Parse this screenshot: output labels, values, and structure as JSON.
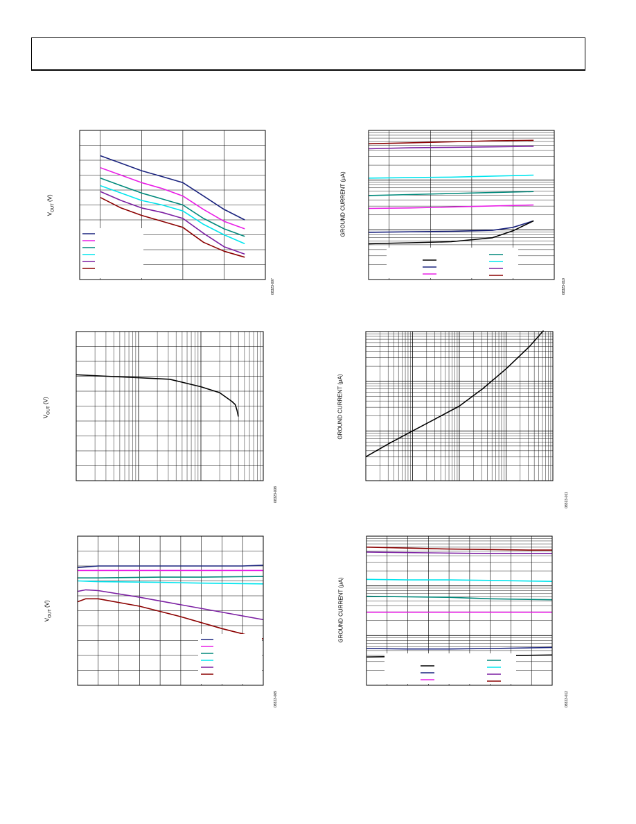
{
  "page": {
    "ylabels": {
      "vout": "V",
      "vout_sub": "OUT",
      "vout_unit": " (V)",
      "ground": "GROUND CURRENT (µA)"
    },
    "figure_codes": [
      "08323-007",
      "08323-010",
      "08323-008",
      "08323-011",
      "08323-009",
      "08323-012"
    ]
  },
  "chart_data": [
    {
      "id": "c1",
      "type": "line",
      "xlim": [
        0,
        45
      ],
      "ylim": [
        0,
        10
      ],
      "xgrid": [
        0,
        5,
        15,
        25,
        35,
        45
      ],
      "ygrid": [
        0,
        1,
        2,
        3,
        4,
        5,
        6,
        7,
        8,
        9,
        10
      ],
      "legend": "bottom-left",
      "legend_style": "box-lines",
      "series": [
        {
          "color": "#1a237e",
          "x": [
            5,
            10,
            15,
            20,
            25,
            30,
            35,
            40
          ],
          "y": [
            8.3,
            7.8,
            7.3,
            6.9,
            6.5,
            5.6,
            4.7,
            4.0
          ]
        },
        {
          "color": "#e91ee6",
          "x": [
            5,
            10,
            15,
            20,
            25,
            30,
            35,
            40
          ],
          "y": [
            7.5,
            7.0,
            6.5,
            6.1,
            5.6,
            4.7,
            3.9,
            3.4
          ]
        },
        {
          "color": "#00897b",
          "x": [
            5,
            10,
            15,
            20,
            25,
            30,
            35,
            40
          ],
          "y": [
            6.8,
            6.3,
            5.8,
            5.4,
            5.0,
            4.1,
            3.4,
            2.9
          ]
        },
        {
          "color": "#00e5ee",
          "x": [
            5,
            10,
            15,
            20,
            25,
            30,
            35,
            40
          ],
          "y": [
            6.3,
            5.8,
            5.3,
            5.0,
            4.6,
            3.7,
            3.0,
            2.4
          ]
        },
        {
          "color": "#7b1fa2",
          "x": [
            5,
            10,
            15,
            20,
            25,
            30,
            35,
            40
          ],
          "y": [
            5.9,
            5.3,
            4.8,
            4.5,
            4.1,
            3.1,
            2.2,
            1.7
          ]
        },
        {
          "color": "#8b0000",
          "x": [
            5,
            10,
            15,
            20,
            25,
            30,
            35,
            40
          ],
          "y": [
            5.5,
            4.8,
            4.3,
            3.9,
            3.5,
            2.5,
            1.9,
            1.5
          ]
        }
      ]
    },
    {
      "id": "c2",
      "type": "line",
      "ylog": true,
      "xlim": [
        0,
        45
      ],
      "ylim": [
        0,
        3
      ],
      "xgrid": [
        0,
        5,
        15,
        25,
        35,
        45
      ],
      "legend": "bottom-center",
      "legend_style": "two-column",
      "series": [
        {
          "color": "#8b0000",
          "x": [
            0,
            10,
            20,
            30,
            40
          ],
          "y": [
            2.73,
            2.75,
            2.77,
            2.79,
            2.8
          ]
        },
        {
          "color": "#7b1fa2",
          "x": [
            0,
            10,
            20,
            30,
            40
          ],
          "y": [
            2.63,
            2.65,
            2.66,
            2.67,
            2.68
          ]
        },
        {
          "color": "#00e5ee",
          "x": [
            0,
            10,
            20,
            30,
            40
          ],
          "y": [
            2.04,
            2.05,
            2.06,
            2.08,
            2.1
          ]
        },
        {
          "color": "#00897b",
          "x": [
            0,
            10,
            20,
            30,
            40
          ],
          "y": [
            1.69,
            1.71,
            1.73,
            1.75,
            1.77
          ]
        },
        {
          "color": "#e91ee6",
          "x": [
            0,
            10,
            20,
            30,
            40
          ],
          "y": [
            1.43,
            1.44,
            1.46,
            1.48,
            1.5
          ]
        },
        {
          "color": "#1a237e",
          "x": [
            0,
            10,
            20,
            30,
            35,
            40
          ],
          "y": [
            0.95,
            0.96,
            0.97,
            0.99,
            1.05,
            1.18
          ]
        },
        {
          "color": "#000000",
          "x": [
            0,
            10,
            20,
            30,
            35,
            40
          ],
          "y": [
            0.72,
            0.74,
            0.76,
            0.84,
            0.98,
            1.18
          ]
        }
      ]
    },
    {
      "id": "c3",
      "type": "line",
      "xlog": true,
      "xlim": [
        0,
        3
      ],
      "ylim": [
        0,
        10
      ],
      "ygrid": [
        0,
        1,
        2,
        3,
        4,
        5,
        6,
        7,
        8,
        9,
        10
      ],
      "legend": "none",
      "series": [
        {
          "color": "#000000",
          "x": [
            0,
            0.5,
            1.0,
            1.5,
            2.0,
            2.3,
            2.5,
            2.55,
            2.58,
            2.6
          ],
          "y": [
            7.1,
            7.0,
            6.9,
            6.8,
            6.3,
            5.9,
            5.3,
            5.1,
            4.7,
            4.3
          ]
        }
      ]
    },
    {
      "id": "c4",
      "type": "line",
      "xlog": true,
      "ylog": true,
      "xlim": [
        0,
        4
      ],
      "ylim": [
        0,
        3
      ],
      "legend": "none",
      "series": [
        {
          "color": "#000000",
          "x": [
            0,
            0.5,
            1.0,
            1.5,
            2.0,
            2.5,
            3.0,
            3.5,
            3.8
          ],
          "y": [
            0.48,
            0.75,
            1.0,
            1.25,
            1.5,
            1.85,
            2.25,
            2.7,
            3.02
          ]
        }
      ]
    },
    {
      "id": "c5",
      "type": "line",
      "xlim": [
        0,
        45
      ],
      "ylim": [
        0,
        10
      ],
      "xgrid": [
        0,
        5,
        10,
        15,
        20,
        25,
        30,
        35,
        40,
        45
      ],
      "ygrid": [
        0,
        1,
        2,
        3,
        4,
        5,
        6,
        7,
        8,
        9,
        10
      ],
      "legend": "bottom-right",
      "legend_style": "box-lines",
      "series": [
        {
          "color": "#1a237e",
          "x": [
            0,
            5,
            20,
            30,
            40,
            45
          ],
          "y": [
            7.9,
            8.0,
            8.0,
            8.0,
            8.0,
            8.05
          ]
        },
        {
          "color": "#e91ee6",
          "x": [
            0,
            5,
            20,
            30,
            45
          ],
          "y": [
            7.7,
            7.7,
            7.7,
            7.7,
            7.7
          ]
        },
        {
          "color": "#00897b",
          "x": [
            0,
            5,
            20,
            30,
            45
          ],
          "y": [
            7.2,
            7.2,
            7.25,
            7.25,
            7.3
          ]
        },
        {
          "color": "#00e5ee",
          "x": [
            0,
            5,
            20,
            30,
            45
          ],
          "y": [
            7.0,
            6.95,
            6.9,
            6.85,
            6.8
          ]
        },
        {
          "color": "#7b1fa2",
          "x": [
            0,
            2,
            5,
            15,
            25,
            35,
            45
          ],
          "y": [
            6.3,
            6.4,
            6.35,
            5.9,
            5.4,
            4.9,
            4.4
          ]
        },
        {
          "color": "#8b0000",
          "x": [
            0,
            2,
            5,
            15,
            25,
            35,
            45
          ],
          "y": [
            5.6,
            5.8,
            5.8,
            5.3,
            4.6,
            3.8,
            3.1
          ]
        }
      ]
    },
    {
      "id": "c6",
      "type": "line",
      "ylog": true,
      "xlim": [
        0,
        45
      ],
      "ylim": [
        0,
        3
      ],
      "xgrid": [
        0,
        5,
        10,
        15,
        20,
        25,
        30,
        35,
        40,
        45
      ],
      "legend": "bottom-center",
      "legend_style": "two-column",
      "series": [
        {
          "color": "#8b0000",
          "x": [
            0,
            10,
            20,
            30,
            40,
            45
          ],
          "y": [
            2.78,
            2.76,
            2.74,
            2.73,
            2.72,
            2.72
          ]
        },
        {
          "color": "#7b1fa2",
          "x": [
            0,
            10,
            20,
            30,
            45
          ],
          "y": [
            2.68,
            2.67,
            2.66,
            2.65,
            2.65
          ]
        },
        {
          "color": "#00e5ee",
          "x": [
            0,
            10,
            20,
            30,
            45
          ],
          "y": [
            2.13,
            2.12,
            2.12,
            2.11,
            2.09
          ]
        },
        {
          "color": "#00897b",
          "x": [
            0,
            10,
            20,
            30,
            45
          ],
          "y": [
            1.79,
            1.78,
            1.77,
            1.74,
            1.72
          ]
        },
        {
          "color": "#e91ee6",
          "x": [
            0,
            10,
            20,
            30,
            45
          ],
          "y": [
            1.47,
            1.47,
            1.47,
            1.47,
            1.47
          ]
        },
        {
          "color": "#1a237e",
          "x": [
            0,
            10,
            20,
            30,
            45
          ],
          "y": [
            0.74,
            0.73,
            0.73,
            0.74,
            0.76
          ]
        },
        {
          "color": "#000000",
          "x": [
            0,
            10,
            20,
            30,
            45
          ],
          "y": [
            0.57,
            0.58,
            0.58,
            0.59,
            0.61
          ]
        }
      ]
    }
  ]
}
